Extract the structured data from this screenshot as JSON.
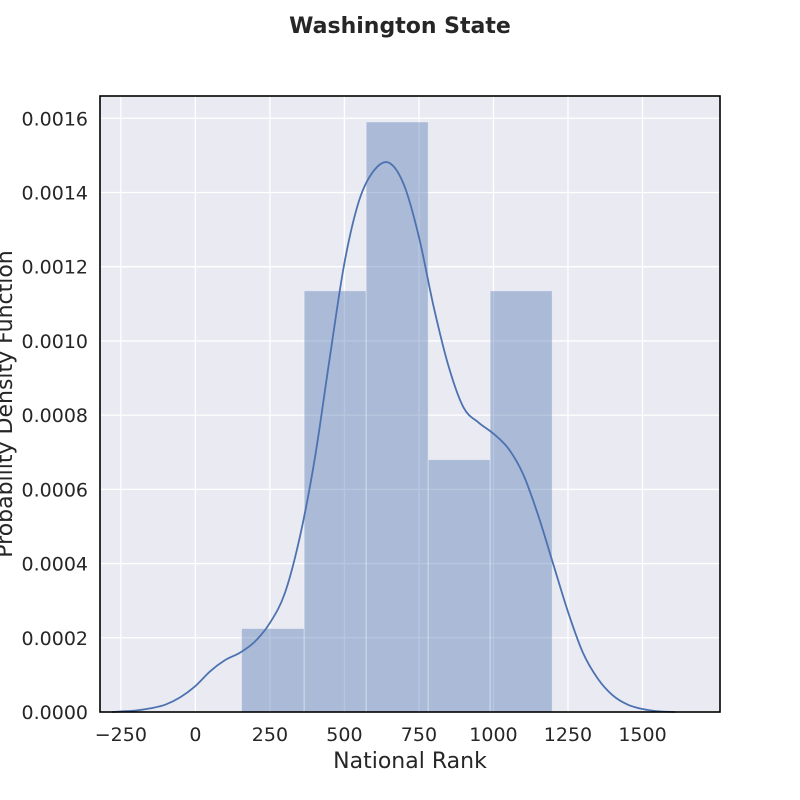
{
  "chart_data": {
    "type": "histogram",
    "title": "Washington State",
    "xlabel": "National Rank",
    "ylabel": "Probability Density Function",
    "xlim": [
      -320,
      1760
    ],
    "ylim": [
      0,
      0.00166
    ],
    "xticks": [
      -250,
      0,
      250,
      500,
      750,
      1000,
      1250,
      1500
    ],
    "xtick_labels": [
      "−250",
      "0",
      "250",
      "500",
      "750",
      "1000",
      "1250",
      "1500"
    ],
    "yticks": [
      0,
      0.0002,
      0.0004,
      0.0006,
      0.0008,
      0.001,
      0.0012,
      0.0014,
      0.0016
    ],
    "ytick_labels": [
      "0.0000",
      "0.0002",
      "0.0004",
      "0.0006",
      "0.0008",
      "0.0010",
      "0.0012",
      "0.0014",
      "0.0016"
    ],
    "grid": true,
    "bins": [
      {
        "x0": 155,
        "x1": 365,
        "density": 0.000225
      },
      {
        "x0": 365,
        "x1": 573,
        "density": 0.001135
      },
      {
        "x0": 573,
        "x1": 781,
        "density": 0.00159
      },
      {
        "x0": 781,
        "x1": 989,
        "density": 0.00068
      },
      {
        "x0": 989,
        "x1": 1197,
        "density": 0.001135
      }
    ],
    "kde": {
      "x": [
        -280,
        -200,
        -150,
        -100,
        -50,
        0,
        50,
        100,
        150,
        200,
        250,
        300,
        350,
        400,
        450,
        500,
        550,
        600,
        650,
        700,
        750,
        800,
        850,
        900,
        950,
        1000,
        1050,
        1100,
        1150,
        1200,
        1250,
        1300,
        1350,
        1400,
        1450,
        1500,
        1550,
        1610
      ],
      "y": [
        0,
        4e-06,
        1e-05,
        2e-05,
        4e-05,
        7e-05,
        0.00011,
        0.00014,
        0.00016,
        0.00019,
        0.00024,
        0.00032,
        0.00047,
        0.00068,
        0.00095,
        0.00121,
        0.00138,
        0.00146,
        0.00148,
        0.00142,
        0.00128,
        0.00109,
        0.00093,
        0.00082,
        0.00078,
        0.00075,
        0.00071,
        0.00064,
        0.00053,
        0.0004,
        0.00027,
        0.00016,
        9e-05,
        4.5e-05,
        2e-05,
        8e-06,
        2e-06,
        0
      ]
    },
    "colors": {
      "background": "#eaeaf2",
      "grid": "#ffffff",
      "bar_fill": "#4c72b0",
      "line": "#4c72b0",
      "frame": "#000000"
    }
  }
}
